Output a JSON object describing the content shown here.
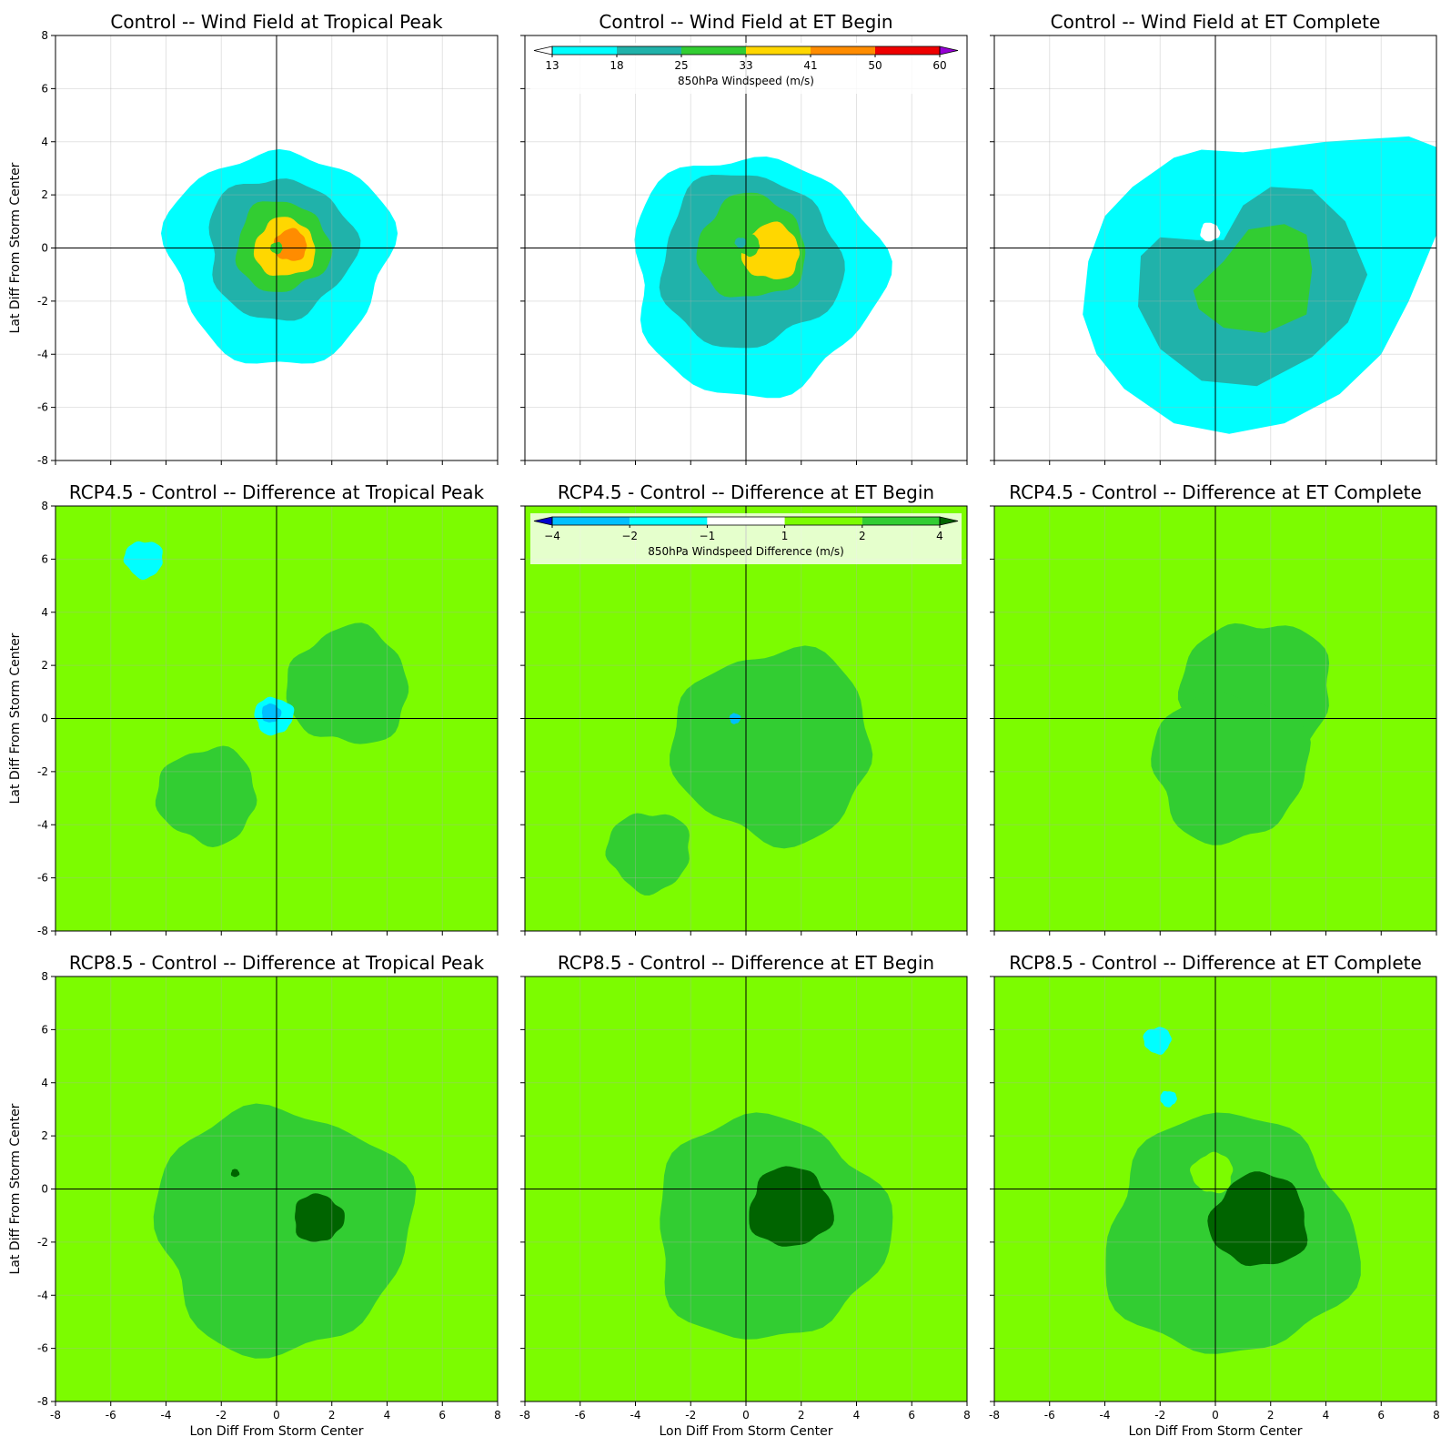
{
  "figure": {
    "ylabel": "Lat Diff From Storm Center",
    "xlabel": "Lon Diff From Storm Center"
  },
  "chart_data": {
    "type": "contour",
    "xlim": [
      -8,
      8
    ],
    "ylim": [
      -8,
      8
    ],
    "ticks": [
      -8,
      -6,
      -4,
      -2,
      0,
      2,
      4,
      6,
      8
    ],
    "grid": true,
    "rows": [
      {
        "kind": "wind",
        "titles": [
          "Control -- Wind Field at Tropical Peak",
          "Control -- Wind Field at ET Begin",
          "Control -- Wind Field at ET Complete"
        ]
      },
      {
        "kind": "diff",
        "titles": [
          "RCP4.5 - Control -- Difference at Tropical Peak",
          "RCP4.5 - Control -- Difference at ET Begin",
          "RCP4.5 - Control -- Difference at ET Complete"
        ]
      },
      {
        "kind": "diff",
        "titles": [
          "RCP8.5 - Control -- Difference at Tropical Peak",
          "RCP8.5 - Control -- Difference at ET Begin",
          "RCP8.5 - Control -- Difference at ET Complete"
        ]
      }
    ],
    "colorbars": [
      {
        "label": "850hPa Windspeed (m/s)",
        "levels": [
          13,
          18,
          25,
          33,
          41,
          50,
          60
        ],
        "level_labels": [
          "13",
          "18",
          "25",
          "33",
          "41",
          "50",
          "60"
        ],
        "colors": [
          "#00ffff",
          "#20b2aa",
          "#32cd32",
          "#ffd700",
          "#ff8c00",
          "#ee0000"
        ],
        "under_color": "#ffffff",
        "over_color": "#9400d3"
      },
      {
        "label": "850hPa Windspeed Difference (m/s)",
        "levels": [
          -4,
          -2,
          -1,
          1,
          2,
          4
        ],
        "level_labels": [
          "−4",
          "−2",
          "−1",
          "1",
          "2",
          "4"
        ],
        "colors": [
          "#00bfff",
          "#00ffff",
          "#ffffff",
          "#7cfc00",
          "#32cd32"
        ],
        "under_color": "#0000cd",
        "over_color": "#006400"
      }
    ],
    "panels": [
      {
        "row": 0,
        "col": 0,
        "contours": [
          {
            "level": 13,
            "center": [
              0.1,
              -0.3
            ],
            "radius": 4.0
          },
          {
            "level": 18,
            "center": [
              0.1,
              0.0
            ],
            "radius": 2.65
          },
          {
            "level": 25,
            "center": [
              0.2,
              0.05
            ],
            "radius": 1.7
          },
          {
            "level": 33,
            "center": [
              0.3,
              0.0
            ],
            "radius": 1.1
          },
          {
            "level": 41,
            "center": [
              0.5,
              0.1
            ],
            "radius": 0.6
          },
          {
            "level": 25,
            "center": [
              0.0,
              0.0
            ],
            "radius": 0.22
          }
        ]
      },
      {
        "row": 0,
        "col": 1,
        "contours": [
          {
            "level": 13,
            "center": [
              0.3,
              -1.0
            ],
            "radius": 4.5
          },
          {
            "level": 18,
            "center": [
              0.1,
              -0.5
            ],
            "radius": 3.25
          },
          {
            "level": 25,
            "center": [
              0.2,
              0.0
            ],
            "radius": 1.95
          },
          {
            "level": 33,
            "center": [
              0.9,
              -0.15
            ],
            "radius": 1.05
          },
          {
            "level": 25,
            "center": [
              0.1,
              0.1
            ],
            "radius": 0.4
          },
          {
            "level": 18,
            "center": [
              -0.2,
              0.2
            ],
            "radius": 0.2
          }
        ]
      },
      {
        "row": 1,
        "col": 0,
        "contours": [
          {
            "level": 1,
            "center": [
              0.5,
              -1.2
            ],
            "radius": 8.0
          },
          {
            "level": 2,
            "center": [
              2.6,
              1.2
            ],
            "radius": 2.2
          },
          {
            "level": 2,
            "center": [
              -2.5,
              -2.9
            ],
            "radius": 1.8
          },
          {
            "level": -1,
            "center": [
              -4.8,
              6.0
            ],
            "radius": 0.7
          },
          {
            "level": -1,
            "center": [
              -0.1,
              0.1
            ],
            "radius": 0.7
          },
          {
            "level": -2,
            "center": [
              -0.2,
              0.2
            ],
            "radius": 0.35
          }
        ]
      },
      {
        "row": 1,
        "col": 1,
        "contours": [
          {
            "level": 1,
            "center": [
              0.0,
              -1.5
            ],
            "radius": 8.0
          },
          {
            "level": 2,
            "center": [
              1.0,
              -1.0
            ],
            "radius": 3.6
          },
          {
            "level": 2,
            "center": [
              -3.5,
              -5.0
            ],
            "radius": 1.5
          },
          {
            "level": -2,
            "center": [
              -0.4,
              0.0
            ],
            "radius": 0.2
          }
        ]
      },
      {
        "row": 1,
        "col": 2,
        "contours": [
          {
            "level": 1,
            "center": [
              0.0,
              -1.0
            ],
            "radius": 8.0
          },
          {
            "level": 2,
            "center": [
              1.5,
              1.0
            ],
            "radius": 2.7
          },
          {
            "level": 2,
            "center": [
              0.5,
              -1.8
            ],
            "radius": 2.8
          }
        ]
      },
      {
        "row": 2,
        "col": 0,
        "contours": [
          {
            "level": 1,
            "center": [
              0.0,
              -0.5
            ],
            "radius": 8.0
          },
          {
            "level": 2,
            "center": [
              0.2,
              -1.5
            ],
            "radius": 4.6
          },
          {
            "level": 4,
            "center": [
              1.5,
              -1.1
            ],
            "radius": 0.9
          },
          {
            "level": 4,
            "center": [
              -1.5,
              0.6
            ],
            "radius": 0.15
          }
        ]
      },
      {
        "row": 2,
        "col": 1,
        "contours": [
          {
            "level": 1,
            "center": [
              0.5,
              -1.0
            ],
            "radius": 8.0
          },
          {
            "level": 2,
            "center": [
              0.8,
              -1.5
            ],
            "radius": 4.2
          },
          {
            "level": 4,
            "center": [
              1.6,
              -0.7
            ],
            "radius": 1.5
          }
        ]
      },
      {
        "row": 2,
        "col": 2,
        "contours": [
          {
            "level": 1,
            "center": [
              0.0,
              -0.5
            ],
            "radius": 8.0
          },
          {
            "level": 2,
            "center": [
              0.5,
              -1.8
            ],
            "radius": 4.5
          },
          {
            "level": 4,
            "center": [
              1.6,
              -1.2
            ],
            "radius": 1.75
          },
          {
            "level": 1,
            "center": [
              -0.1,
              0.6
            ],
            "radius": 0.75
          },
          {
            "level": -1,
            "center": [
              -2.1,
              5.6
            ],
            "radius": 0.5
          },
          {
            "level": -1,
            "center": [
              -1.7,
              3.4
            ],
            "radius": 0.3
          }
        ]
      }
    ],
    "panel_polygons": {
      "0,2": [
        {
          "level": 13,
          "pts": [
            [
              -4.8,
              -2.5
            ],
            [
              -4.6,
              -0.5
            ],
            [
              -4.0,
              1.2
            ],
            [
              -3.0,
              2.3
            ],
            [
              -1.5,
              3.4
            ],
            [
              -0.5,
              3.7
            ],
            [
              1.0,
              3.6
            ],
            [
              2.5,
              3.8
            ],
            [
              4.0,
              4.0
            ],
            [
              5.5,
              4.1
            ],
            [
              7.0,
              4.2
            ],
            [
              8.0,
              3.8
            ],
            [
              8.0,
              0.5
            ],
            [
              7.0,
              -2.0
            ],
            [
              6.0,
              -4.0
            ],
            [
              4.5,
              -5.5
            ],
            [
              2.5,
              -6.6
            ],
            [
              0.5,
              -7.0
            ],
            [
              -1.5,
              -6.6
            ],
            [
              -3.3,
              -5.3
            ],
            [
              -4.3,
              -4.0
            ]
          ]
        },
        {
          "level": 18,
          "pts": [
            [
              -2.8,
              -2.2
            ],
            [
              -2.7,
              -0.3
            ],
            [
              -2.0,
              0.4
            ],
            [
              -0.7,
              0.3
            ],
            [
              0.3,
              0.3
            ],
            [
              1.0,
              1.6
            ],
            [
              2.0,
              2.3
            ],
            [
              3.5,
              2.2
            ],
            [
              4.7,
              1.0
            ],
            [
              5.5,
              -1.0
            ],
            [
              4.8,
              -2.8
            ],
            [
              3.5,
              -4.1
            ],
            [
              1.5,
              -5.2
            ],
            [
              -0.5,
              -5.0
            ],
            [
              -2.0,
              -3.8
            ]
          ]
        },
        {
          "level": 25,
          "pts": [
            [
              -0.8,
              -1.6
            ],
            [
              -0.6,
              -2.3
            ],
            [
              0.3,
              -3.0
            ],
            [
              1.8,
              -3.2
            ],
            [
              3.3,
              -2.5
            ],
            [
              3.5,
              -0.8
            ],
            [
              3.3,
              0.5
            ],
            [
              2.5,
              0.9
            ],
            [
              1.2,
              0.7
            ],
            [
              0.3,
              -0.5
            ]
          ]
        }
      ]
    }
  }
}
